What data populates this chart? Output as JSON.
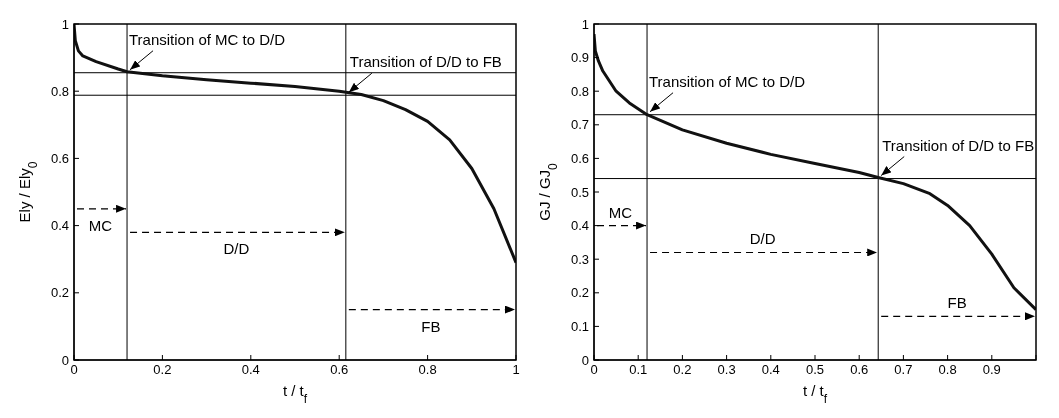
{
  "chart_data": [
    {
      "type": "line",
      "xlabel": "t / t$_{f}$",
      "ylabel": "Ely / Ely$_{0}$",
      "xlim": [
        0,
        1
      ],
      "ylim": [
        0,
        1
      ],
      "xticks": [
        0,
        0.2,
        0.4,
        0.6,
        0.8,
        1
      ],
      "yticks": [
        0,
        0.2,
        0.4,
        0.6,
        0.8,
        1
      ],
      "grid": false,
      "legend": false,
      "marker": "none",
      "line_style": "solid",
      "x": [
        0,
        0.003,
        0.01,
        0.02,
        0.05,
        0.1,
        0.12,
        0.2,
        0.3,
        0.4,
        0.5,
        0.6,
        0.65,
        0.7,
        0.75,
        0.8,
        0.85,
        0.9,
        0.95,
        1
      ],
      "series": [
        {
          "color": "#111111",
          "values": [
            1,
            0.95,
            0.92,
            0.905,
            0.888,
            0.866,
            0.858,
            0.846,
            0.834,
            0.824,
            0.814,
            0.8,
            0.79,
            0.772,
            0.745,
            0.71,
            0.655,
            0.57,
            0.45,
            0.29
          ]
        }
      ],
      "ref_lines": [
        {
          "axis": "y",
          "value": 0.855,
          "label": null
        },
        {
          "axis": "y",
          "value": 0.788,
          "label": null
        },
        {
          "axis": "x",
          "value": 0.12,
          "label": null
        },
        {
          "axis": "x",
          "value": 0.615,
          "label": null
        }
      ],
      "annotations": [
        {
          "text": "Transition of MC to D/D",
          "x": 0.12,
          "y": 0.855
        },
        {
          "text": "Transition of D/D to FB",
          "x": 0.615,
          "y": 0.788
        },
        "MC",
        "D/D",
        "FB"
      ]
    },
    {
      "type": "line",
      "xlabel": "t / t$_{f}$",
      "ylabel": "GJ / GJ$_{0}$",
      "xlim": [
        0,
        1
      ],
      "ylim": [
        0,
        1
      ],
      "xticks": [
        0,
        0.1,
        0.2,
        0.3,
        0.4,
        0.5,
        0.6,
        0.7,
        0.8,
        0.9,
        {
          "value": 1,
          "label": null
        }
      ],
      "yticks": [
        0,
        0.1,
        0.2,
        0.3,
        0.4,
        0.5,
        0.6,
        0.7,
        0.8,
        0.9,
        1
      ],
      "grid": false,
      "legend": false,
      "marker": "none",
      "line_style": "solid",
      "x": [
        0,
        0.003,
        0.01,
        0.02,
        0.05,
        0.08,
        0.12,
        0.2,
        0.3,
        0.4,
        0.5,
        0.6,
        0.643,
        0.7,
        0.76,
        0.8,
        0.85,
        0.9,
        0.95,
        1
      ],
      "series": [
        {
          "color": "#111111",
          "values": [
            0.97,
            0.92,
            0.89,
            0.86,
            0.8,
            0.765,
            0.73,
            0.685,
            0.645,
            0.612,
            0.585,
            0.558,
            0.543,
            0.525,
            0.495,
            0.46,
            0.4,
            0.315,
            0.215,
            0.15
          ]
        }
      ],
      "ref_lines": [
        {
          "axis": "y",
          "value": 0.73,
          "label": null
        },
        {
          "axis": "y",
          "value": 0.54,
          "label": null
        },
        {
          "axis": "x",
          "value": 0.12,
          "label": null
        },
        {
          "axis": "x",
          "value": 0.643,
          "label": null
        }
      ],
      "annotations": [
        {
          "text": "Transition of MC to D/D",
          "x": 0.12,
          "y": 0.73
        },
        {
          "text": "Transition of D/D to FB",
          "x": 0.643,
          "y": 0.54
        },
        "MC",
        "D/D",
        "FB"
      ]
    }
  ]
}
